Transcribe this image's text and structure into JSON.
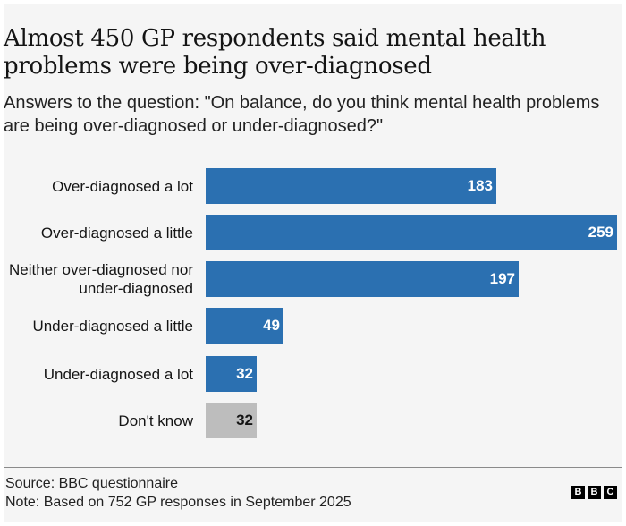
{
  "chart_data": {
    "type": "bar",
    "orientation": "horizontal",
    "title": "Almost 450 GP respondents said mental health problems were being over-diagnosed",
    "subtitle": "Answers to the question: \"On balance, do you think mental health problems are being over-diagnosed or under-diagnosed?\"",
    "xlabel": "",
    "ylabel": "",
    "xlim": [
      0,
      259
    ],
    "grid": false,
    "categories": [
      "Over-diagnosed a lot",
      "Over-diagnosed a little",
      "Neither over-diagnosed nor under-diagnosed",
      "Under-diagnosed a little",
      "Under-diagnosed a lot",
      "Don't know"
    ],
    "values": [
      183,
      259,
      197,
      49,
      32,
      32
    ],
    "value_labels": [
      "183",
      "259",
      "197",
      "49",
      "32",
      "32"
    ],
    "bar_colors": [
      "#2b70b1",
      "#2b70b1",
      "#2b70b1",
      "#2b70b1",
      "#2b70b1",
      "#bdbdbd"
    ],
    "label_colors": [
      "#ffffff",
      "#ffffff",
      "#ffffff",
      "#ffffff",
      "#ffffff",
      "#141414"
    ]
  },
  "footer": {
    "source": "Source: BBC questionnaire",
    "note": "Note: Based on 752 GP responses in September 2025"
  },
  "logo": [
    "B",
    "B",
    "C"
  ]
}
